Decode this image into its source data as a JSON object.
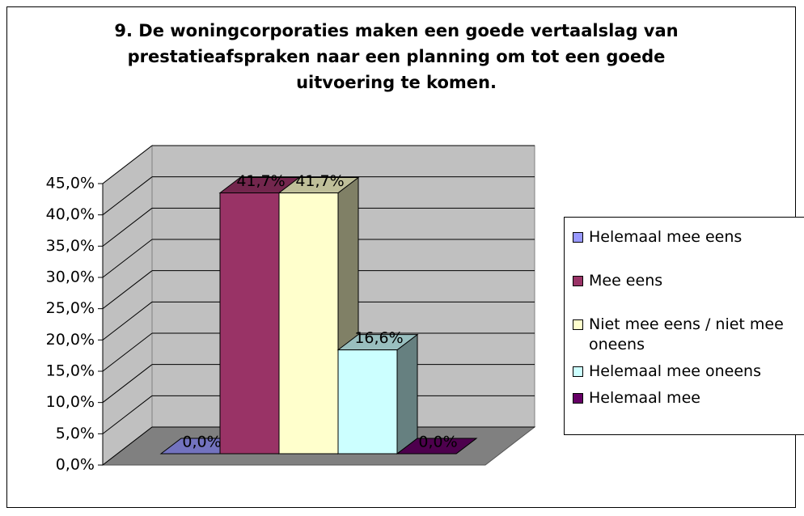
{
  "chart_data": {
    "type": "bar3d",
    "title": "9. De woningcorporaties maken een goede vertaalslag van prestatieafspraken naar een planning om tot een goede uitvoering te komen.",
    "categories": [
      null
    ],
    "series": [
      {
        "name": "Helemaal mee eens",
        "color": "#9999ff",
        "values": [
          0
        ],
        "value_labels": [
          "0,0%"
        ]
      },
      {
        "name": "Mee eens",
        "color": "#993366",
        "values": [
          41.7
        ],
        "value_labels": [
          "41,7%"
        ]
      },
      {
        "name": "Niet mee eens / niet mee oneens",
        "color": "#ffffcc",
        "values": [
          41.7
        ],
        "value_labels": [
          "41,7%"
        ]
      },
      {
        "name": "Helemaal mee oneens",
        "color": "#ccffff",
        "values": [
          16.6
        ],
        "value_labels": [
          "16,6%"
        ]
      },
      {
        "name": "Helemaal mee",
        "color": "#660066",
        "values": [
          0
        ],
        "value_labels": [
          "0,0%"
        ]
      }
    ],
    "ylim": [
      0,
      45
    ],
    "yticks": [
      {
        "value": 0,
        "label": "0,0%"
      },
      {
        "value": 5,
        "label": "5,0%"
      },
      {
        "value": 10,
        "label": "10,0%"
      },
      {
        "value": 15,
        "label": "15,0%"
      },
      {
        "value": 20,
        "label": "20,0%"
      },
      {
        "value": 25,
        "label": "25,0%"
      },
      {
        "value": 30,
        "label": "30,0%"
      },
      {
        "value": 35,
        "label": "35,0%"
      },
      {
        "value": 40,
        "label": "40,0%"
      },
      {
        "value": 45,
        "label": "45,0%"
      }
    ],
    "grid": true,
    "legend": "right"
  }
}
